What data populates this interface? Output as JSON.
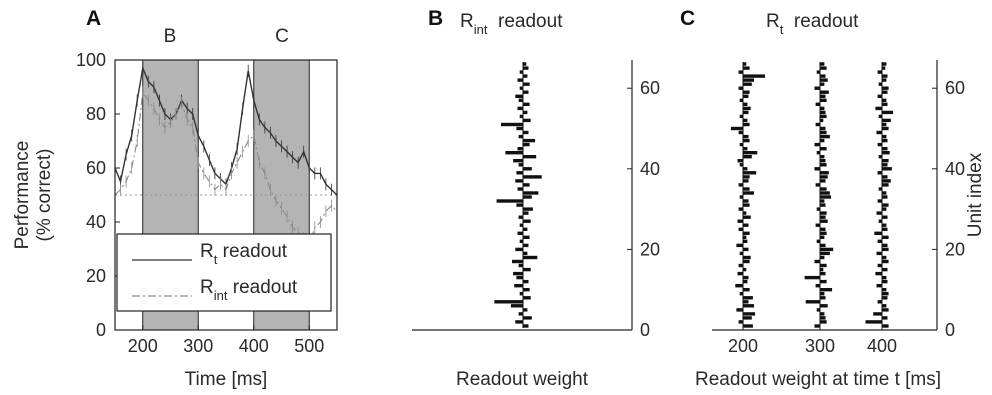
{
  "chart_data": [
    {
      "type": "line",
      "panel": "A",
      "xlabel": "Time [ms]",
      "ylabel": [
        "Performance",
        "(% correct)"
      ],
      "xlim": [
        150,
        550
      ],
      "ylim": [
        0,
        100
      ],
      "xticks": [
        200,
        300,
        400,
        500
      ],
      "yticks": [
        0,
        20,
        40,
        60,
        80,
        100
      ],
      "shaded_regions": [
        {
          "label": "B",
          "x0": 200,
          "x1": 300
        },
        {
          "label": "C",
          "x0": 400,
          "x1": 500
        }
      ],
      "chance_level": 50,
      "legend_position": "bottom",
      "legend": [
        {
          "main": "R",
          "sub": "t",
          "suffix": " readout",
          "style": "solid"
        },
        {
          "main": "R",
          "sub": "int",
          "suffix": " readout",
          "style": "dashdot"
        }
      ],
      "series": [
        {
          "name": "Rt readout",
          "color": "#333333",
          "x": [
            150,
            160,
            170,
            180,
            190,
            200,
            210,
            220,
            230,
            240,
            250,
            260,
            270,
            280,
            290,
            300,
            310,
            320,
            330,
            340,
            350,
            360,
            370,
            380,
            390,
            400,
            410,
            420,
            430,
            440,
            450,
            460,
            470,
            480,
            490,
            500,
            510,
            520,
            530,
            540,
            550
          ],
          "y": [
            60,
            55,
            65,
            72,
            85,
            97,
            92,
            90,
            85,
            80,
            78,
            80,
            85,
            82,
            80,
            72,
            68,
            63,
            58,
            56,
            54,
            60,
            67,
            82,
            96,
            85,
            78,
            75,
            73,
            70,
            68,
            66,
            64,
            62,
            66,
            60,
            58,
            58,
            54,
            52,
            50
          ]
        },
        {
          "name": "Rint readout",
          "color": "#8a8a8a",
          "x": [
            150,
            160,
            170,
            180,
            190,
            200,
            210,
            220,
            230,
            240,
            250,
            260,
            270,
            280,
            290,
            300,
            310,
            320,
            330,
            340,
            350,
            360,
            370,
            380,
            390,
            400,
            410,
            420,
            430,
            440,
            450,
            460,
            470,
            480,
            490,
            500,
            510,
            520,
            530,
            540,
            550
          ],
          "y": [
            50,
            52,
            55,
            60,
            70,
            88,
            85,
            82,
            78,
            75,
            77,
            80,
            84,
            78,
            75,
            62,
            58,
            55,
            52,
            54,
            52,
            58,
            62,
            66,
            70,
            72,
            62,
            58,
            52,
            48,
            45,
            42,
            38,
            36,
            34,
            32,
            38,
            40,
            44,
            46,
            44
          ]
        }
      ]
    },
    {
      "type": "bar",
      "orientation": "horizontal",
      "panel": "B",
      "title": {
        "main": "R",
        "sub": "int",
        "suffix": "  readout"
      },
      "xlabel": "Readout weight",
      "ylim": [
        0,
        67
      ],
      "yticks": [
        0,
        20,
        40,
        60
      ],
      "categories_range": [
        1,
        66
      ],
      "values": [
        0.5,
        -0.7,
        0.8,
        -0.4,
        0.4,
        -1.1,
        -2.6,
        0.7,
        -0.3,
        0.6,
        -0.8,
        0.5,
        -0.6,
        -0.9,
        0.7,
        -0.4,
        -1.0,
        1.3,
        0.4,
        -0.7,
        0.5,
        -0.3,
        0.6,
        -0.5,
        0.4,
        -0.3,
        0.7,
        -0.4,
        0.5,
        0.9,
        -0.6,
        -2.4,
        0.8,
        1.4,
        -0.5,
        0.6,
        -0.7,
        1.7,
        -0.6,
        0.8,
        -0.4,
        -0.9,
        1.2,
        -1.6,
        -0.5,
        0.6,
        1.1,
        -0.4,
        0.5,
        -0.6,
        -2.0,
        0.7,
        -0.3,
        0.4,
        -0.5,
        0.6,
        -0.4,
        -0.7,
        0.5,
        -0.3,
        0.6,
        -0.5,
        0.4,
        -0.3,
        0.5,
        0.3
      ]
    },
    {
      "type": "bar",
      "orientation": "horizontal",
      "panel": "C",
      "title": {
        "main": "R",
        "sub": "t",
        "suffix": "  readout"
      },
      "xlabel": "Readout weight at time t [ms]",
      "ylabel": "Unit index",
      "ylim": [
        0,
        67
      ],
      "yticks": [
        0,
        20,
        40,
        60
      ],
      "xticks": [
        200,
        300,
        400
      ],
      "categories_range": [
        1,
        66
      ],
      "series": [
        {
          "name": "200",
          "values": [
            0.9,
            -0.4,
            0.8,
            1.1,
            -0.6,
            1.0,
            0.5,
            0.9,
            -0.3,
            0.6,
            -0.7,
            0.4,
            0.5,
            -0.5,
            0.3,
            -0.4,
            0.6,
            0.7,
            -0.3,
            0.5,
            -0.6,
            0.4,
            0.3,
            0.6,
            -0.4,
            0.5,
            -0.5,
            0.7,
            0.3,
            -0.4,
            0.6,
            0.5,
            -0.3,
            1.0,
            0.6,
            -0.4,
            0.5,
            0.6,
            1.2,
            0.4,
            -0.3,
            -0.5,
            0.8,
            1.3,
            0.4,
            -0.3,
            0.6,
            0.5,
            -0.4,
            -1.1,
            0.6,
            0.4,
            -0.3,
            0.5,
            0.7,
            0.4,
            -0.3,
            0.5,
            0.6,
            -0.4,
            0.8,
            1.0,
            2.0,
            -0.4,
            0.6,
            0.3
          ]
        },
        {
          "name": "300",
          "values": [
            -0.5,
            0.6,
            0.5,
            0.4,
            -0.3,
            0.7,
            -1.3,
            0.5,
            0.4,
            1.1,
            -0.4,
            0.6,
            -1.4,
            0.5,
            0.3,
            0.6,
            -0.5,
            0.4,
            0.9,
            1.2,
            0.5,
            -0.3,
            0.4,
            0.6,
            0.5,
            -0.4,
            0.7,
            0.5,
            0.6,
            -0.3,
            0.5,
            0.4,
            1.0,
            0.9,
            0.6,
            -0.4,
            0.5,
            0.7,
            0.8,
            -0.5,
            0.6,
            0.5,
            0.4,
            -0.3,
            0.6,
            -0.5,
            0.4,
            0.9,
            0.6,
            0.5,
            -0.4,
            0.3,
            0.6,
            0.5,
            0.4,
            -0.4,
            0.6,
            0.5,
            0.8,
            -0.5,
            0.4,
            0.7,
            0.5,
            -0.3,
            0.6,
            0.4
          ]
        },
        {
          "name": "400",
          "values": [
            0.6,
            -1.5,
            0.5,
            -0.8,
            0.6,
            0.4,
            -0.4,
            0.5,
            0.6,
            0.4,
            -0.5,
            0.5,
            0.4,
            -0.6,
            0.5,
            -0.4,
            0.6,
            0.4,
            -0.5,
            0.6,
            0.5,
            -0.4,
            0.6,
            -0.7,
            0.5,
            0.4,
            -0.3,
            0.5,
            -0.5,
            0.4,
            0.6,
            -0.4,
            0.5,
            0.4,
            -0.3,
            0.6,
            0.8,
            0.5,
            -0.4,
            0.9,
            0.5,
            0.6,
            -0.3,
            0.7,
            0.5,
            -0.4,
            0.5,
            0.4,
            -0.5,
            0.6,
            0.4,
            0.8,
            -0.3,
            1.0,
            -0.6,
            0.5,
            0.4,
            -0.4,
            0.5,
            0.6,
            -0.3,
            0.4,
            0.5,
            -0.4,
            0.3,
            0.4
          ]
        }
      ]
    }
  ]
}
